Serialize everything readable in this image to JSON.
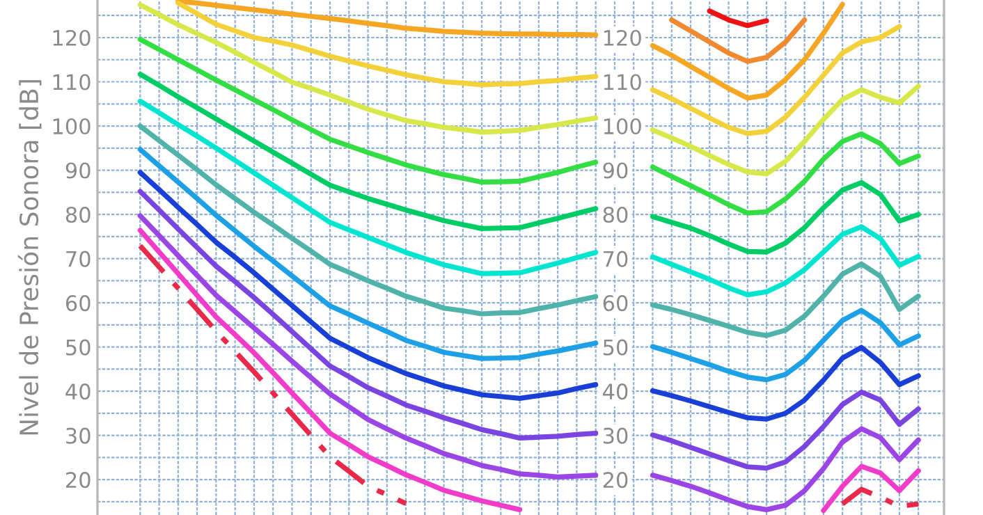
{
  "chart_data": {
    "type": "line",
    "ylabel": "Nivel de Presión Sonora [dB]",
    "ylim": [
      12,
      128.5
    ],
    "y2lim": [
      12,
      128.5
    ],
    "categories": [
      null,
      null,
      null,
      null,
      null,
      null,
      null,
      null,
      null,
      null,
      null,
      null,
      null,
      null,
      null,
      null,
      null,
      null,
      null,
      null,
      null,
      null,
      null,
      null,
      null,
      null,
      null,
      null,
      null,
      null,
      null,
      null,
      null,
      null,
      null,
      null,
      null,
      null,
      null,
      null,
      null,
      null
    ],
    "yticks": [
      {
        "value": 15,
        "label": null
      },
      20,
      {
        "value": 25,
        "label": null
      },
      30,
      {
        "value": 35,
        "label": null
      },
      40,
      {
        "value": 45,
        "label": null
      },
      50,
      {
        "value": 55,
        "label": null
      },
      60,
      {
        "value": 65,
        "label": null
      },
      70,
      {
        "value": 75,
        "label": null
      },
      80,
      {
        "value": 85,
        "label": null
      },
      90,
      {
        "value": 95,
        "label": null
      },
      100,
      {
        "value": 105,
        "label": null
      },
      110,
      {
        "value": 115,
        "label": null
      },
      120,
      {
        "value": 125,
        "label": null
      }
    ],
    "y2ticks": [
      20,
      30,
      40,
      50,
      60,
      70,
      80,
      90,
      100,
      110,
      120
    ],
    "tick_labels": "y",
    "grid": true,
    "marker": "none",
    "series": [
      {
        "color": "#d8e84a",
        "values": [
          127.4,
          125.2,
          122.9,
          120.9,
          118.9,
          116.7,
          114.4,
          112.2,
          109.9,
          108.5,
          107,
          105.4,
          103.8,
          102.5,
          101.2,
          100.5,
          99.7,
          99.2,
          98.6,
          98.8,
          99,
          99.7,
          100.3,
          101.1,
          101.8,
          null,
          null,
          null,
          null,
          null,
          null,
          null,
          null,
          null,
          null,
          null,
          null,
          null,
          null,
          null,
          null,
          null
        ]
      },
      {
        "color": "#f5a623",
        "values": [
          null,
          null,
          128.2,
          127.8,
          127.3,
          126.8,
          126.3,
          125.8,
          125.3,
          124.8,
          124.3,
          123.8,
          123.2,
          122.7,
          122.1,
          121.8,
          121.4,
          121.2,
          121,
          120.9,
          120.8,
          120.8,
          120.7,
          120.7,
          120.6,
          null,
          null,
          null,
          null,
          null,
          null,
          null,
          null,
          null,
          null,
          null,
          null,
          null,
          null,
          null,
          null,
          null
        ]
      },
      {
        "color": "#f3d13a",
        "values": [
          null,
          null,
          127.8,
          125.4,
          123,
          121.5,
          120,
          119.2,
          118.3,
          117.1,
          115.8,
          114.7,
          113.6,
          112.6,
          111.6,
          110.8,
          110,
          109.7,
          109.3,
          109.5,
          109.6,
          110,
          110.3,
          110.8,
          111.2,
          null,
          null,
          null,
          null,
          null,
          null,
          null,
          null,
          null,
          null,
          null,
          null,
          null,
          null,
          null,
          null,
          null
        ]
      },
      {
        "color": "#33dd44",
        "values": [
          119.6,
          117.3,
          115,
          112.7,
          110.4,
          108.2,
          105.9,
          103.7,
          101.4,
          99.2,
          97,
          95.5,
          94,
          92.6,
          91.2,
          90.1,
          89,
          88.2,
          87.3,
          87.4,
          87.5,
          88.5,
          89.5,
          90.7,
          91.8,
          null,
          null,
          null,
          null,
          null,
          null,
          null,
          null,
          null,
          null,
          null,
          null,
          null,
          null,
          null,
          null,
          null
        ]
      },
      {
        "color": "#00cc66",
        "values": [
          111.7,
          109.2,
          106.6,
          104.1,
          101.6,
          99.1,
          96.6,
          94.1,
          91.6,
          89.1,
          86.6,
          85.1,
          83.6,
          82.3,
          81,
          79.8,
          78.6,
          77.7,
          76.8,
          76.9,
          77,
          78.1,
          79.1,
          80.2,
          81.3,
          null,
          null,
          null,
          null,
          null,
          null,
          null,
          null,
          null,
          null,
          null,
          null,
          null,
          null,
          null,
          null,
          null
        ]
      },
      {
        "color": "#00e5d0",
        "values": [
          105.6,
          103,
          100.3,
          97.7,
          95,
          92.2,
          89.4,
          86.6,
          83.8,
          81,
          78.2,
          76.5,
          74.8,
          73.1,
          71.4,
          70,
          68.6,
          67.6,
          66.6,
          66.7,
          66.8,
          67.9,
          69,
          70.2,
          71.4,
          null,
          null,
          null,
          null,
          null,
          null,
          null,
          null,
          null,
          null,
          null,
          null,
          null,
          null,
          null,
          null,
          null
        ]
      },
      {
        "color": "#4fb3a9",
        "values": [
          100,
          96.7,
          93.4,
          90.1,
          86.7,
          83.6,
          80.5,
          77.6,
          74.6,
          71.7,
          68.7,
          66.9,
          65,
          63.3,
          61.5,
          60.2,
          58.8,
          58.2,
          57.5,
          57.7,
          57.8,
          58.7,
          59.5,
          60.5,
          61.4,
          null,
          null,
          null,
          null,
          null,
          null,
          null,
          null,
          null,
          null,
          null,
          null,
          null,
          null,
          null,
          null,
          null
        ]
      },
      {
        "color": "#1ea0e6",
        "values": [
          94.7,
          91,
          87.3,
          83.6,
          79.8,
          76.3,
          72.8,
          69.5,
          66.1,
          62.7,
          59.3,
          57.4,
          55.4,
          53.5,
          51.5,
          50.2,
          48.8,
          48.1,
          47.4,
          47.5,
          47.6,
          48.4,
          49.1,
          50,
          50.9,
          null,
          null,
          null,
          null,
          null,
          null,
          null,
          null,
          null,
          null,
          null,
          null,
          null,
          null,
          null,
          null,
          null
        ]
      },
      {
        "color": "#1a3fd6",
        "values": [
          89.5,
          85.6,
          81.6,
          77.7,
          73.7,
          70.3,
          66.8,
          63.1,
          59.4,
          55.7,
          52,
          49.8,
          47.6,
          45.8,
          44,
          42.6,
          41.2,
          40.2,
          39.2,
          38.8,
          38.4,
          39,
          39.6,
          40.6,
          41.5,
          null,
          null,
          null,
          null,
          null,
          null,
          null,
          null,
          null,
          null,
          null,
          null,
          null,
          null,
          null,
          null,
          null
        ]
      },
      {
        "color": "#7a44e0",
        "values": [
          85.2,
          81,
          76.7,
          72.5,
          68.3,
          64.8,
          61.2,
          57.4,
          53.5,
          49.6,
          45.7,
          43.3,
          40.8,
          38.9,
          36.9,
          35.5,
          34,
          32.7,
          31.3,
          30.4,
          29.4,
          29.6,
          29.8,
          30.2,
          30.5,
          null,
          null,
          null,
          null,
          null,
          null,
          null,
          null,
          null,
          null,
          null,
          null,
          null,
          null,
          null,
          null,
          null
        ]
      },
      {
        "color": "#9b45e6",
        "values": [
          79.7,
          75.2,
          70.7,
          66.2,
          61.7,
          58,
          54.3,
          50.6,
          46.8,
          43.1,
          39.4,
          36.5,
          33.6,
          31.5,
          29.4,
          27.7,
          25.9,
          24.6,
          23.2,
          22.3,
          21.3,
          21,
          20.6,
          20.8,
          21,
          null,
          null,
          null,
          null,
          null,
          null,
          null,
          null,
          null,
          null,
          null,
          null,
          null,
          null,
          null,
          null,
          null
        ]
      },
      {
        "color": "#f03cc8",
        "values": [
          76.4,
          71.5,
          66.6,
          61.7,
          56.8,
          52.8,
          48.7,
          44.2,
          39.6,
          35.1,
          30.5,
          27.9,
          25.2,
          23.2,
          21.1,
          19.4,
          17.6,
          16.4,
          15.2,
          14.2,
          13.2,
          null,
          null,
          null,
          null,
          null,
          null,
          null,
          null,
          null,
          null,
          null,
          null,
          null,
          null,
          null,
          null,
          null,
          null,
          null,
          null,
          null
        ]
      },
      {
        "color": "#e8294a",
        "line_style": "dashed",
        "values": [
          72.9,
          68.1,
          63.3,
          58.5,
          53.6,
          49,
          44.4,
          39.6,
          34.8,
          30,
          25.2,
          21.9,
          18.5,
          16.6,
          14.6,
          null,
          null,
          null,
          null,
          null,
          null,
          null,
          null,
          null,
          null,
          null,
          null,
          null,
          null,
          null,
          null,
          null,
          null,
          null,
          null,
          null,
          null,
          null,
          null,
          null,
          null,
          null
        ]
      },
      {
        "color": "#d8e84a",
        "values": [
          null,
          null,
          null,
          null,
          null,
          null,
          null,
          null,
          null,
          null,
          null,
          null,
          null,
          null,
          null,
          null,
          null,
          null,
          null,
          null,
          null,
          null,
          null,
          null,
          null,
          null,
          null,
          99.1,
          97.3,
          95.4,
          93.3,
          91.3,
          89.6,
          89.2,
          92,
          96.5,
          101.5,
          106,
          108.2,
          106.5,
          105.2,
          109
        ]
      },
      {
        "color": "#ee1111",
        "values": [
          null,
          null,
          null,
          null,
          null,
          null,
          null,
          null,
          null,
          null,
          null,
          null,
          null,
          null,
          null,
          null,
          null,
          null,
          null,
          null,
          null,
          null,
          null,
          null,
          null,
          null,
          null,
          null,
          null,
          null,
          126,
          124,
          122.7,
          123.8,
          null,
          null,
          null,
          null,
          null,
          null,
          null,
          null
        ]
      },
      {
        "color": "#f08a30",
        "values": [
          null,
          null,
          null,
          null,
          null,
          null,
          null,
          null,
          null,
          null,
          null,
          null,
          null,
          null,
          null,
          null,
          null,
          null,
          null,
          null,
          null,
          null,
          null,
          null,
          null,
          null,
          null,
          null,
          124,
          121.5,
          119,
          116.5,
          114.6,
          115.5,
          119,
          124,
          null,
          null,
          null,
          null,
          null,
          null
        ]
      },
      {
        "color": "#f5a623",
        "values": [
          null,
          null,
          null,
          null,
          null,
          null,
          null,
          null,
          null,
          null,
          null,
          null,
          null,
          null,
          null,
          null,
          null,
          null,
          null,
          null,
          null,
          null,
          null,
          null,
          null,
          null,
          null,
          118.2,
          116,
          113.5,
          111,
          108.5,
          106.3,
          107,
          110.5,
          115,
          121,
          127.5,
          null,
          null,
          null,
          null
        ]
      },
      {
        "color": "#f3d13a",
        "values": [
          null,
          null,
          null,
          null,
          null,
          null,
          null,
          null,
          null,
          null,
          null,
          null,
          null,
          null,
          null,
          null,
          null,
          null,
          null,
          null,
          null,
          null,
          null,
          null,
          null,
          null,
          null,
          108.2,
          106.2,
          104,
          101.8,
          99.7,
          98.3,
          98.8,
          102,
          106.5,
          111.5,
          116.5,
          119,
          120,
          122.5,
          null
        ]
      },
      {
        "color": "#33dd44",
        "values": [
          null,
          null,
          null,
          null,
          null,
          null,
          null,
          null,
          null,
          null,
          null,
          null,
          null,
          null,
          null,
          null,
          null,
          null,
          null,
          null,
          null,
          null,
          null,
          null,
          null,
          null,
          null,
          90.7,
          88.6,
          86.5,
          84.4,
          82.2,
          80.3,
          80.6,
          83.5,
          87.5,
          92.5,
          96.5,
          98.2,
          96,
          91.5,
          93.2
        ]
      },
      {
        "color": "#00cc66",
        "values": [
          null,
          null,
          null,
          null,
          null,
          null,
          null,
          null,
          null,
          null,
          null,
          null,
          null,
          null,
          null,
          null,
          null,
          null,
          null,
          null,
          null,
          null,
          null,
          null,
          null,
          null,
          null,
          79.5,
          78.2,
          76.9,
          75.2,
          73.3,
          71.6,
          71.5,
          73.5,
          77,
          81.5,
          85.5,
          87.2,
          84.5,
          78.5,
          80
        ]
      },
      {
        "color": "#00e5d0",
        "values": [
          null,
          null,
          null,
          null,
          null,
          null,
          null,
          null,
          null,
          null,
          null,
          null,
          null,
          null,
          null,
          null,
          null,
          null,
          null,
          null,
          null,
          null,
          null,
          null,
          null,
          null,
          null,
          70.4,
          68.7,
          67,
          65.3,
          63.4,
          61.8,
          62.5,
          64.5,
          67.5,
          71.5,
          75.5,
          77.2,
          74.5,
          68.5,
          70.5
        ]
      },
      {
        "color": "#4fb3a9",
        "values": [
          null,
          null,
          null,
          null,
          null,
          null,
          null,
          null,
          null,
          null,
          null,
          null,
          null,
          null,
          null,
          null,
          null,
          null,
          null,
          null,
          null,
          null,
          null,
          null,
          null,
          null,
          null,
          59.5,
          58.5,
          57.3,
          56,
          54.7,
          53.3,
          52.6,
          53.8,
          57,
          61.5,
          66.5,
          68.8,
          66,
          58.5,
          61.5
        ]
      },
      {
        "color": "#1ea0e6",
        "values": [
          null,
          null,
          null,
          null,
          null,
          null,
          null,
          null,
          null,
          null,
          null,
          null,
          null,
          null,
          null,
          null,
          null,
          null,
          null,
          null,
          null,
          null,
          null,
          null,
          null,
          null,
          null,
          50.1,
          48.8,
          47.4,
          46,
          44.5,
          43.2,
          42.6,
          43.8,
          47,
          51.5,
          56,
          58.3,
          55.5,
          50.5,
          52.5
        ]
      },
      {
        "color": "#1a3fd6",
        "values": [
          null,
          null,
          null,
          null,
          null,
          null,
          null,
          null,
          null,
          null,
          null,
          null,
          null,
          null,
          null,
          null,
          null,
          null,
          null,
          null,
          null,
          null,
          null,
          null,
          null,
          null,
          null,
          40.1,
          39,
          37.8,
          36.5,
          35.2,
          34,
          33.7,
          35,
          38,
          42.5,
          47.5,
          49.9,
          46.5,
          41.5,
          43.5
        ]
      },
      {
        "color": "#7a44e0",
        "values": [
          null,
          null,
          null,
          null,
          null,
          null,
          null,
          null,
          null,
          null,
          null,
          null,
          null,
          null,
          null,
          null,
          null,
          null,
          null,
          null,
          null,
          null,
          null,
          null,
          null,
          null,
          null,
          30.1,
          28.8,
          27.3,
          25.8,
          24.3,
          22.9,
          22.6,
          24,
          27.5,
          32,
          37,
          39.8,
          38,
          32.5,
          36
        ]
      },
      {
        "color": "#9b45e6",
        "values": [
          null,
          null,
          null,
          null,
          null,
          null,
          null,
          null,
          null,
          null,
          null,
          null,
          null,
          null,
          null,
          null,
          null,
          null,
          null,
          null,
          null,
          null,
          null,
          null,
          null,
          null,
          null,
          21,
          19.8,
          18.5,
          17,
          15.4,
          13.9,
          13.2,
          14.2,
          17.5,
          22.5,
          28.5,
          31.5,
          29.5,
          24.5,
          29
        ]
      },
      {
        "color": "#f03cc8",
        "values": [
          null,
          null,
          null,
          null,
          null,
          null,
          null,
          null,
          null,
          null,
          null,
          null,
          null,
          null,
          null,
          null,
          null,
          null,
          null,
          null,
          null,
          null,
          null,
          null,
          null,
          null,
          null,
          null,
          null,
          null,
          null,
          null,
          null,
          null,
          null,
          null,
          13,
          18.5,
          23,
          21.5,
          17.5,
          22
        ]
      },
      {
        "color": "#e8294a",
        "line_style": "dashed",
        "values": [
          null,
          null,
          null,
          null,
          null,
          null,
          null,
          null,
          null,
          null,
          null,
          null,
          null,
          null,
          null,
          null,
          null,
          null,
          null,
          null,
          null,
          null,
          null,
          null,
          null,
          null,
          null,
          null,
          null,
          null,
          null,
          null,
          null,
          null,
          null,
          null,
          null,
          14.5,
          17.8,
          16,
          14,
          14.5
        ]
      }
    ]
  }
}
